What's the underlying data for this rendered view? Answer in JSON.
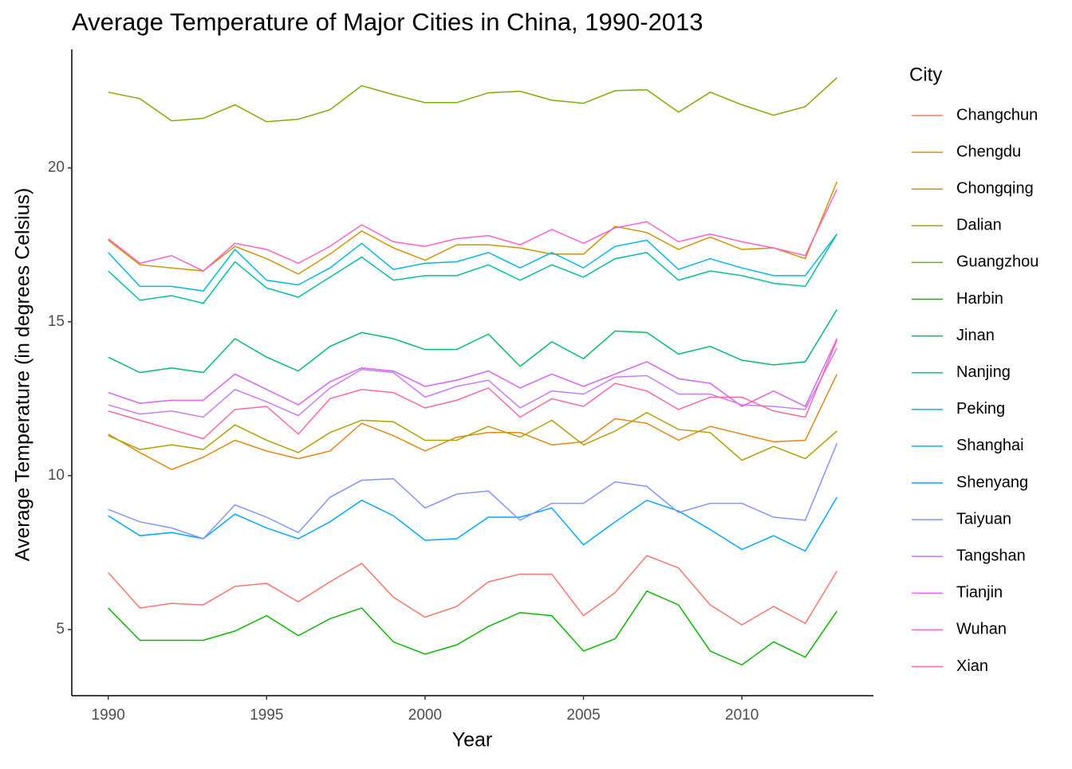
{
  "chart_data": {
    "type": "line",
    "title": "Average Temperature of Major Cities in China, 1990-2013",
    "x_label": "Year",
    "y_label": "Average Temperature (in degrees Celsius)",
    "legend_title": "City",
    "legend_position": "right",
    "x": [
      1990,
      1991,
      1992,
      1993,
      1994,
      1995,
      1996,
      1997,
      1998,
      1999,
      2000,
      2001,
      2002,
      2003,
      2004,
      2005,
      2006,
      2007,
      2008,
      2009,
      2010,
      2011,
      2012,
      2013
    ],
    "xlim": [
      1988.85,
      2014.15
    ],
    "xticks": [
      1990,
      1995,
      2000,
      2005,
      2010
    ],
    "ylim": [
      2.85,
      23.85
    ],
    "yticks": [
      5,
      10,
      15,
      20
    ],
    "series": [
      {
        "name": "Changchun",
        "color": "#F8766D",
        "values": [
          6.85,
          5.7,
          5.85,
          5.8,
          6.4,
          6.5,
          5.9,
          6.55,
          7.15,
          6.05,
          5.4,
          5.75,
          6.55,
          6.8,
          6.8,
          5.45,
          6.2,
          7.4,
          7.0,
          5.8,
          5.15,
          5.75,
          5.2,
          6.9
        ]
      },
      {
        "name": "Chengdu",
        "color": "#E68613",
        "values": [
          11.35,
          10.75,
          10.2,
          10.6,
          11.15,
          10.8,
          10.55,
          10.8,
          11.7,
          11.3,
          10.8,
          11.25,
          11.4,
          11.4,
          11.0,
          11.1,
          11.85,
          11.7,
          11.15,
          11.6,
          11.35,
          11.1,
          11.15,
          13.3
        ]
      },
      {
        "name": "Chongqing",
        "color": "#CD9600",
        "values": [
          17.65,
          16.85,
          16.75,
          16.65,
          17.45,
          17.05,
          16.55,
          17.2,
          17.95,
          17.4,
          17.0,
          17.5,
          17.5,
          17.4,
          17.2,
          17.2,
          18.1,
          17.9,
          17.35,
          17.75,
          17.35,
          17.4,
          17.05,
          19.55
        ]
      },
      {
        "name": "Dalian",
        "color": "#ABA300",
        "values": [
          11.3,
          10.85,
          11.0,
          10.85,
          11.65,
          11.15,
          10.75,
          11.4,
          11.8,
          11.75,
          11.15,
          11.15,
          11.6,
          11.25,
          11.8,
          11.0,
          11.45,
          12.05,
          11.5,
          11.4,
          10.5,
          10.95,
          10.55,
          11.45
        ]
      },
      {
        "name": "Guangzhou",
        "color": "#7CAE00",
        "values": [
          22.46,
          22.25,
          21.53,
          21.61,
          22.05,
          21.5,
          21.58,
          21.89,
          22.67,
          22.38,
          22.12,
          22.12,
          22.44,
          22.49,
          22.2,
          22.1,
          22.51,
          22.54,
          21.81,
          22.46,
          22.05,
          21.71,
          21.99,
          22.93
        ]
      },
      {
        "name": "Harbin",
        "color": "#0CB702",
        "values": [
          5.7,
          4.65,
          4.65,
          4.65,
          4.95,
          5.45,
          4.8,
          5.35,
          5.7,
          4.6,
          4.2,
          4.5,
          5.1,
          5.55,
          5.45,
          4.3,
          4.7,
          6.25,
          5.8,
          4.3,
          3.85,
          4.6,
          4.1,
          5.6
        ]
      },
      {
        "name": "Jinan",
        "color": "#00BE67",
        "values": [
          13.85,
          13.35,
          13.5,
          13.35,
          14.45,
          13.85,
          13.4,
          14.2,
          14.65,
          14.45,
          14.1,
          14.1,
          14.6,
          13.55,
          14.35,
          13.8,
          14.7,
          14.65,
          13.95,
          14.2,
          13.75,
          13.6,
          13.7,
          15.4
        ]
      },
      {
        "name": "Nanjing",
        "color": "#00C19A",
        "values": [
          16.65,
          15.7,
          15.85,
          15.6,
          16.95,
          16.1,
          15.8,
          16.45,
          17.1,
          16.35,
          16.5,
          16.5,
          16.85,
          16.35,
          16.85,
          16.45,
          17.05,
          17.25,
          16.35,
          16.65,
          16.5,
          16.25,
          16.15,
          17.85
        ]
      },
      {
        "name": "Peking",
        "color": "#00BFC4",
        "values": [
          12.7,
          12.35,
          12.45,
          12.45,
          13.3,
          12.8,
          12.3,
          13.05,
          13.5,
          13.4,
          12.9,
          13.1,
          13.4,
          12.85,
          13.3,
          12.9,
          13.3,
          13.7,
          13.15,
          13.0,
          12.25,
          12.75,
          12.25,
          14.45
        ]
      },
      {
        "name": "Shanghai",
        "color": "#00B8E7",
        "values": [
          17.25,
          16.15,
          16.15,
          16.0,
          17.35,
          16.35,
          16.2,
          16.75,
          17.55,
          16.7,
          16.9,
          16.95,
          17.25,
          16.75,
          17.25,
          16.75,
          17.45,
          17.65,
          16.7,
          17.05,
          16.75,
          16.5,
          16.5,
          17.85
        ]
      },
      {
        "name": "Shenyang",
        "color": "#00A9FF",
        "values": [
          8.7,
          8.05,
          8.15,
          7.95,
          8.75,
          8.3,
          7.95,
          8.5,
          9.2,
          8.7,
          7.9,
          7.95,
          8.65,
          8.65,
          8.95,
          7.75,
          8.5,
          9.2,
          8.85,
          8.25,
          7.6,
          8.05,
          7.55,
          9.3
        ]
      },
      {
        "name": "Taiyuan",
        "color": "#8494FF",
        "values": [
          8.9,
          8.5,
          8.3,
          7.95,
          9.05,
          8.65,
          8.15,
          9.3,
          9.85,
          9.9,
          8.95,
          9.4,
          9.5,
          8.55,
          9.1,
          9.1,
          9.8,
          9.65,
          8.8,
          9.1,
          9.1,
          8.65,
          8.55,
          11.05
        ]
      },
      {
        "name": "Tangshan",
        "color": "#C77CFF",
        "values": [
          12.3,
          12.0,
          12.1,
          11.9,
          12.8,
          12.4,
          11.95,
          12.85,
          13.45,
          13.35,
          12.55,
          12.9,
          13.1,
          12.2,
          12.75,
          12.65,
          13.2,
          13.25,
          12.65,
          12.65,
          12.3,
          12.25,
          12.15,
          14.15
        ]
      },
      {
        "name": "Tianjin",
        "color": "#ED68ED",
        "values": [
          12.7,
          12.35,
          12.45,
          12.45,
          13.3,
          12.8,
          12.3,
          13.05,
          13.5,
          13.4,
          12.9,
          13.1,
          13.4,
          12.85,
          13.3,
          12.9,
          13.3,
          13.7,
          13.15,
          13.0,
          12.25,
          12.75,
          12.25,
          14.45
        ]
      },
      {
        "name": "Wuhan",
        "color": "#FF61CC",
        "values": [
          17.7,
          16.9,
          17.15,
          16.65,
          17.55,
          17.35,
          16.9,
          17.45,
          18.15,
          17.6,
          17.45,
          17.7,
          17.8,
          17.5,
          18.0,
          17.55,
          18.05,
          18.25,
          17.6,
          17.85,
          17.6,
          17.4,
          17.15,
          19.3
        ]
      },
      {
        "name": "Xian",
        "color": "#FF68A1",
        "values": [
          12.1,
          11.8,
          11.5,
          11.2,
          12.15,
          12.25,
          11.35,
          12.5,
          12.8,
          12.7,
          12.2,
          12.45,
          12.85,
          11.9,
          12.5,
          12.25,
          13.0,
          12.75,
          12.15,
          12.55,
          12.55,
          12.1,
          11.9,
          14.4
        ]
      }
    ]
  }
}
